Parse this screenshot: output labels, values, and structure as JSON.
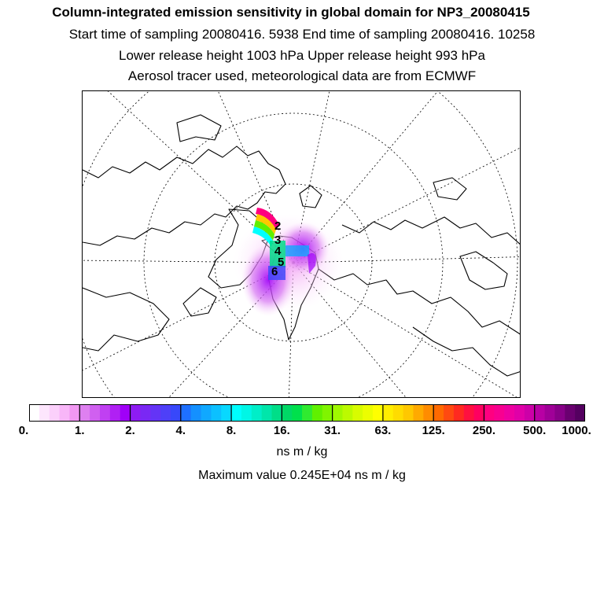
{
  "header": {
    "title": "Column-integrated emission sensitivity in global domain for NP3_20080415",
    "sampling": "Start time of sampling 20080416.  5938     End time of sampling 20080416. 10258",
    "release": "Lower release height 1003 hPa        Upper release height  993 hPa",
    "tracer": "Aerosol tracer used, meteorological data are from ECMWF"
  },
  "map": {
    "projection": "polar stereographic",
    "markers": [
      "2",
      "3",
      "4",
      "5",
      "6"
    ]
  },
  "colorbar": {
    "ticks": [
      "0.",
      "1.",
      "2.",
      "4.",
      "8.",
      "16.",
      "31.",
      "63.",
      "125.",
      "250.",
      "500.",
      "1000."
    ],
    "units": "ns m / kg",
    "colors": [
      "#ffffff",
      "#fde6fd",
      "#fbd0fb",
      "#f8b6f8",
      "#f198f2",
      "#de80f0",
      "#d060f0",
      "#c040f2",
      "#b020f4",
      "#a000f8",
      "#8e1cf2",
      "#7a28f4",
      "#6434f6",
      "#4e40f8",
      "#3848fa",
      "#1e70ff",
      "#1490ff",
      "#10a8ff",
      "#0cc0ff",
      "#08d8ff",
      "#00ffff",
      "#00f6e6",
      "#00eec8",
      "#00e6aa",
      "#00de88",
      "#00d866",
      "#00e04c",
      "#30ea30",
      "#60f000",
      "#80f400",
      "#a0f800",
      "#bcfa00",
      "#d8fc00",
      "#ecfe00",
      "#ffff00",
      "#ffee00",
      "#ffdc00",
      "#ffc800",
      "#ffaa00",
      "#ff8c00",
      "#ff6a00",
      "#ff4a10",
      "#ff2a20",
      "#ff1040",
      "#ff0060",
      "#ff0080",
      "#f80090",
      "#ee00a0",
      "#e000a8",
      "#cc00a8",
      "#b800a4",
      "#a00098",
      "#880088",
      "#6a0070",
      "#540060"
    ]
  },
  "footer": {
    "max_value": "Maximum value  0.245E+04 ns m / kg"
  }
}
